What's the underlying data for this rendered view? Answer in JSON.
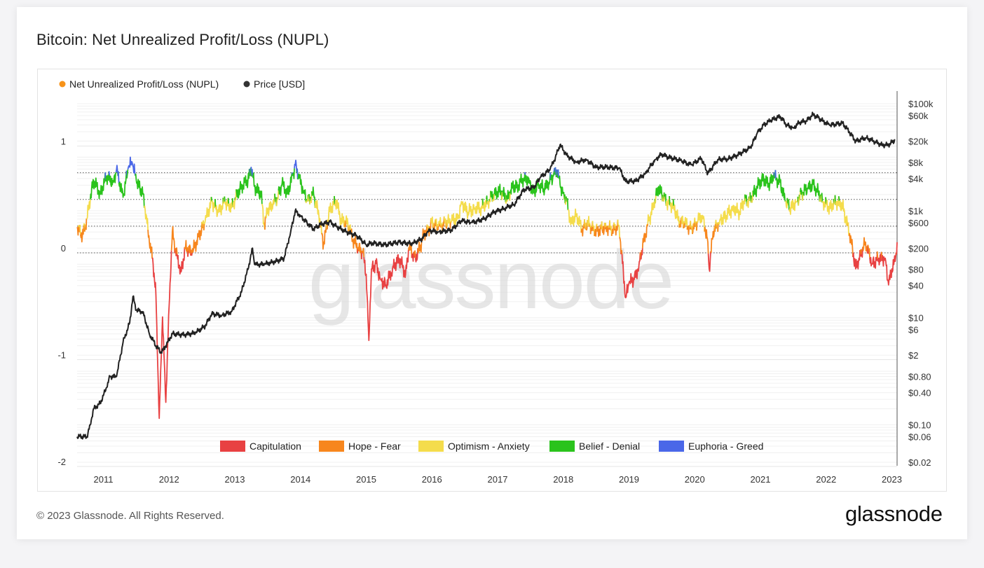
{
  "title": "Bitcoin: Net Unrealized Profit/Loss (NUPL)",
  "footer": {
    "copyright": "© 2023 Glassnode. All Rights Reserved.",
    "logo": "glassnode"
  },
  "watermark": "glassnode",
  "legend_top": [
    {
      "label": "Net Unrealized Profit/Loss (NUPL)",
      "color": "#f7931a"
    },
    {
      "label": "Price [USD]",
      "color": "#333333"
    }
  ],
  "legend_zones": [
    {
      "label": "Capitulation",
      "color": "#e84142"
    },
    {
      "label": "Hope - Fear",
      "color": "#f7861d"
    },
    {
      "label": "Optimism - Anxiety",
      "color": "#f4dc4c"
    },
    {
      "label": "Belief - Denial",
      "color": "#2ac31c"
    },
    {
      "label": "Euphoria - Greed",
      "color": "#4a67e8"
    }
  ],
  "chart_data": {
    "type": "line",
    "title": "Bitcoin: Net Unrealized Profit/Loss (NUPL)",
    "x_ticks": [
      "2011",
      "2012",
      "2013",
      "2014",
      "2015",
      "2016",
      "2017",
      "2018",
      "2019",
      "2020",
      "2021",
      "2022",
      "2023"
    ],
    "x_range": [
      2010.6,
      2023.08
    ],
    "left_axis": {
      "ticks": [
        "1",
        "0",
        "-1",
        "-2"
      ],
      "tick_values": [
        1,
        0,
        -1,
        -2
      ],
      "range": [
        -2.0,
        1.35
      ]
    },
    "right_axis": {
      "scale": "log",
      "ticks": [
        "$100k",
        "$60k",
        "$20k",
        "$8k",
        "$4k",
        "$1k",
        "$600",
        "$200",
        "$80",
        "$40",
        "$10",
        "$6",
        "$2",
        "$0.80",
        "$0.40",
        "$0.10",
        "$0.06",
        "$0.02"
      ],
      "tick_values": [
        100000,
        60000,
        20000,
        8000,
        4000,
        1000,
        600,
        200,
        80,
        40,
        10,
        6,
        2,
        0.8,
        0.4,
        0.1,
        0.06,
        0.02
      ],
      "range": [
        0.02,
        100000
      ]
    },
    "zone_lines": [
      0.75,
      0.5,
      0.25,
      0
    ],
    "zones": [
      {
        "name": "Capitulation",
        "color": "#e84142",
        "below": 0
      },
      {
        "name": "Hope - Fear",
        "color": "#f7861d",
        "from": 0,
        "to": 0.25
      },
      {
        "name": "Optimism - Anxiety",
        "color": "#f4dc4c",
        "from": 0.25,
        "to": 0.5
      },
      {
        "name": "Belief - Denial",
        "color": "#2ac31c",
        "from": 0.5,
        "to": 0.75
      },
      {
        "name": "Euphoria - Greed",
        "color": "#4a67e8",
        "above": 0.75
      }
    ],
    "series": [
      {
        "name": "Net Unrealized Profit/Loss (NUPL)",
        "axis": "left",
        "points": [
          [
            2010.6,
            0.24
          ],
          [
            2010.68,
            0.16
          ],
          [
            2010.75,
            0.32
          ],
          [
            2010.8,
            0.5
          ],
          [
            2010.85,
            0.68
          ],
          [
            2010.95,
            0.55
          ],
          [
            2011.05,
            0.72
          ],
          [
            2011.15,
            0.66
          ],
          [
            2011.2,
            0.78
          ],
          [
            2011.3,
            0.52
          ],
          [
            2011.38,
            0.8
          ],
          [
            2011.44,
            0.84
          ],
          [
            2011.5,
            0.68
          ],
          [
            2011.6,
            0.55
          ],
          [
            2011.65,
            0.36
          ],
          [
            2011.7,
            0.1
          ],
          [
            2011.75,
            -0.05
          ],
          [
            2011.8,
            -0.4
          ],
          [
            2011.85,
            -1.55
          ],
          [
            2011.9,
            -0.6
          ],
          [
            2011.95,
            -1.4
          ],
          [
            2012.0,
            -0.5
          ],
          [
            2012.05,
            0.2
          ],
          [
            2012.1,
            0.02
          ],
          [
            2012.18,
            -0.18
          ],
          [
            2012.25,
            0.05
          ],
          [
            2012.35,
            0.0
          ],
          [
            2012.45,
            0.15
          ],
          [
            2012.55,
            0.3
          ],
          [
            2012.65,
            0.48
          ],
          [
            2012.75,
            0.38
          ],
          [
            2012.85,
            0.48
          ],
          [
            2012.95,
            0.42
          ],
          [
            2013.0,
            0.5
          ],
          [
            2013.1,
            0.62
          ],
          [
            2013.2,
            0.68
          ],
          [
            2013.25,
            0.8
          ],
          [
            2013.3,
            0.62
          ],
          [
            2013.4,
            0.55
          ],
          [
            2013.45,
            0.25
          ],
          [
            2013.5,
            0.4
          ],
          [
            2013.58,
            0.45
          ],
          [
            2013.65,
            0.52
          ],
          [
            2013.72,
            0.65
          ],
          [
            2013.8,
            0.55
          ],
          [
            2013.88,
            0.72
          ],
          [
            2013.92,
            0.82
          ],
          [
            2013.98,
            0.7
          ],
          [
            2014.05,
            0.58
          ],
          [
            2014.1,
            0.48
          ],
          [
            2014.2,
            0.55
          ],
          [
            2014.28,
            0.35
          ],
          [
            2014.35,
            0.08
          ],
          [
            2014.45,
            0.42
          ],
          [
            2014.55,
            0.48
          ],
          [
            2014.62,
            0.3
          ],
          [
            2014.72,
            0.28
          ],
          [
            2014.8,
            0.12
          ],
          [
            2014.88,
            0.05
          ],
          [
            2014.95,
            0.0
          ],
          [
            2015.0,
            -0.2
          ],
          [
            2015.04,
            -0.82
          ],
          [
            2015.08,
            -0.15
          ],
          [
            2015.15,
            -0.1
          ],
          [
            2015.22,
            -0.25
          ],
          [
            2015.3,
            -0.3
          ],
          [
            2015.4,
            -0.15
          ],
          [
            2015.5,
            -0.05
          ],
          [
            2015.6,
            -0.2
          ],
          [
            2015.65,
            0.05
          ],
          [
            2015.75,
            -0.05
          ],
          [
            2015.82,
            0.05
          ],
          [
            2015.88,
            0.18
          ],
          [
            2015.95,
            0.22
          ],
          [
            2016.0,
            0.28
          ],
          [
            2016.1,
            0.25
          ],
          [
            2016.2,
            0.28
          ],
          [
            2016.3,
            0.3
          ],
          [
            2016.4,
            0.32
          ],
          [
            2016.45,
            0.48
          ],
          [
            2016.55,
            0.38
          ],
          [
            2016.65,
            0.42
          ],
          [
            2016.75,
            0.42
          ],
          [
            2016.85,
            0.48
          ],
          [
            2016.95,
            0.55
          ],
          [
            2017.05,
            0.58
          ],
          [
            2017.15,
            0.5
          ],
          [
            2017.22,
            0.62
          ],
          [
            2017.3,
            0.62
          ],
          [
            2017.4,
            0.7
          ],
          [
            2017.48,
            0.68
          ],
          [
            2017.55,
            0.56
          ],
          [
            2017.62,
            0.65
          ],
          [
            2017.7,
            0.6
          ],
          [
            2017.78,
            0.66
          ],
          [
            2017.85,
            0.72
          ],
          [
            2017.9,
            0.78
          ],
          [
            2017.95,
            0.64
          ],
          [
            2018.0,
            0.56
          ],
          [
            2018.05,
            0.48
          ],
          [
            2018.12,
            0.28
          ],
          [
            2018.2,
            0.36
          ],
          [
            2018.28,
            0.22
          ],
          [
            2018.38,
            0.28
          ],
          [
            2018.48,
            0.2
          ],
          [
            2018.55,
            0.22
          ],
          [
            2018.65,
            0.24
          ],
          [
            2018.75,
            0.22
          ],
          [
            2018.85,
            0.25
          ],
          [
            2018.9,
            -0.1
          ],
          [
            2018.95,
            -0.42
          ],
          [
            2019.0,
            -0.28
          ],
          [
            2019.08,
            -0.25
          ],
          [
            2019.15,
            -0.12
          ],
          [
            2019.22,
            0.1
          ],
          [
            2019.3,
            0.3
          ],
          [
            2019.38,
            0.45
          ],
          [
            2019.45,
            0.62
          ],
          [
            2019.52,
            0.52
          ],
          [
            2019.6,
            0.46
          ],
          [
            2019.68,
            0.44
          ],
          [
            2019.75,
            0.3
          ],
          [
            2019.85,
            0.28
          ],
          [
            2019.95,
            0.22
          ],
          [
            2020.05,
            0.3
          ],
          [
            2020.12,
            0.35
          ],
          [
            2020.2,
            0.1
          ],
          [
            2020.22,
            -0.15
          ],
          [
            2020.28,
            0.2
          ],
          [
            2020.38,
            0.3
          ],
          [
            2020.48,
            0.35
          ],
          [
            2020.58,
            0.42
          ],
          [
            2020.68,
            0.38
          ],
          [
            2020.75,
            0.48
          ],
          [
            2020.85,
            0.5
          ],
          [
            2020.95,
            0.62
          ],
          [
            2021.05,
            0.7
          ],
          [
            2021.12,
            0.63
          ],
          [
            2021.2,
            0.72
          ],
          [
            2021.3,
            0.66
          ],
          [
            2021.38,
            0.48
          ],
          [
            2021.45,
            0.42
          ],
          [
            2021.55,
            0.48
          ],
          [
            2021.62,
            0.55
          ],
          [
            2021.72,
            0.6
          ],
          [
            2021.8,
            0.64
          ],
          [
            2021.85,
            0.6
          ],
          [
            2021.95,
            0.48
          ],
          [
            2022.05,
            0.42
          ],
          [
            2022.15,
            0.48
          ],
          [
            2022.25,
            0.44
          ],
          [
            2022.3,
            0.32
          ],
          [
            2022.38,
            0.12
          ],
          [
            2022.45,
            -0.15
          ],
          [
            2022.5,
            -0.05
          ],
          [
            2022.6,
            0.1
          ],
          [
            2022.7,
            -0.1
          ],
          [
            2022.8,
            -0.05
          ],
          [
            2022.9,
            -0.05
          ],
          [
            2022.95,
            -0.3
          ],
          [
            2023.0,
            -0.15
          ],
          [
            2023.05,
            -0.08
          ],
          [
            2023.08,
            0.1
          ]
        ]
      },
      {
        "name": "Price [USD]",
        "axis": "right",
        "points": [
          [
            2010.6,
            0.06
          ],
          [
            2010.75,
            0.06
          ],
          [
            2010.8,
            0.1
          ],
          [
            2010.85,
            0.2
          ],
          [
            2010.95,
            0.25
          ],
          [
            2011.05,
            0.5
          ],
          [
            2011.1,
            0.8
          ],
          [
            2011.2,
            0.8
          ],
          [
            2011.3,
            3.5
          ],
          [
            2011.4,
            8
          ],
          [
            2011.45,
            25
          ],
          [
            2011.5,
            14
          ],
          [
            2011.6,
            13
          ],
          [
            2011.7,
            5
          ],
          [
            2011.8,
            3
          ],
          [
            2011.88,
            2.2
          ],
          [
            2011.95,
            3
          ],
          [
            2012.05,
            5
          ],
          [
            2012.2,
            4.8
          ],
          [
            2012.4,
            5.2
          ],
          [
            2012.55,
            7
          ],
          [
            2012.65,
            12
          ],
          [
            2012.8,
            11
          ],
          [
            2012.95,
            13
          ],
          [
            2013.1,
            30
          ],
          [
            2013.2,
            80
          ],
          [
            2013.27,
            200
          ],
          [
            2013.3,
            100
          ],
          [
            2013.45,
            100
          ],
          [
            2013.6,
            110
          ],
          [
            2013.75,
            130
          ],
          [
            2013.85,
            400
          ],
          [
            2013.92,
            1000
          ],
          [
            2014.0,
            800
          ],
          [
            2014.1,
            600
          ],
          [
            2014.2,
            450
          ],
          [
            2014.3,
            550
          ],
          [
            2014.45,
            620
          ],
          [
            2014.55,
            500
          ],
          [
            2014.7,
            400
          ],
          [
            2014.85,
            350
          ],
          [
            2015.0,
            230
          ],
          [
            2015.1,
            250
          ],
          [
            2015.3,
            230
          ],
          [
            2015.5,
            260
          ],
          [
            2015.7,
            240
          ],
          [
            2015.85,
            300
          ],
          [
            2015.95,
            430
          ],
          [
            2016.1,
            400
          ],
          [
            2016.3,
            440
          ],
          [
            2016.45,
            650
          ],
          [
            2016.6,
            600
          ],
          [
            2016.8,
            700
          ],
          [
            2016.95,
            960
          ],
          [
            2017.1,
            1100
          ],
          [
            2017.25,
            1300
          ],
          [
            2017.4,
            2500
          ],
          [
            2017.55,
            2700
          ],
          [
            2017.65,
            4200
          ],
          [
            2017.8,
            6000
          ],
          [
            2017.88,
            10000
          ],
          [
            2017.95,
            17000
          ],
          [
            2018.05,
            11000
          ],
          [
            2018.2,
            8000
          ],
          [
            2018.35,
            9000
          ],
          [
            2018.5,
            6500
          ],
          [
            2018.65,
            6500
          ],
          [
            2018.85,
            6300
          ],
          [
            2018.95,
            3500
          ],
          [
            2019.1,
            3600
          ],
          [
            2019.25,
            5000
          ],
          [
            2019.4,
            9000
          ],
          [
            2019.5,
            11500
          ],
          [
            2019.6,
            10000
          ],
          [
            2019.8,
            8500
          ],
          [
            2019.95,
            7200
          ],
          [
            2020.1,
            9500
          ],
          [
            2020.2,
            5000
          ],
          [
            2020.35,
            9000
          ],
          [
            2020.5,
            9200
          ],
          [
            2020.65,
            11000
          ],
          [
            2020.85,
            15000
          ],
          [
            2020.95,
            28000
          ],
          [
            2021.05,
            40000
          ],
          [
            2021.15,
            48000
          ],
          [
            2021.3,
            58000
          ],
          [
            2021.4,
            40000
          ],
          [
            2021.5,
            35000
          ],
          [
            2021.6,
            45000
          ],
          [
            2021.7,
            48000
          ],
          [
            2021.8,
            63000
          ],
          [
            2021.88,
            55000
          ],
          [
            2021.95,
            47000
          ],
          [
            2022.05,
            40000
          ],
          [
            2022.25,
            43000
          ],
          [
            2022.35,
            30000
          ],
          [
            2022.45,
            20000
          ],
          [
            2022.6,
            23000
          ],
          [
            2022.75,
            19500
          ],
          [
            2022.85,
            17000
          ],
          [
            2022.95,
            16800
          ],
          [
            2023.05,
            21000
          ]
        ]
      }
    ]
  }
}
